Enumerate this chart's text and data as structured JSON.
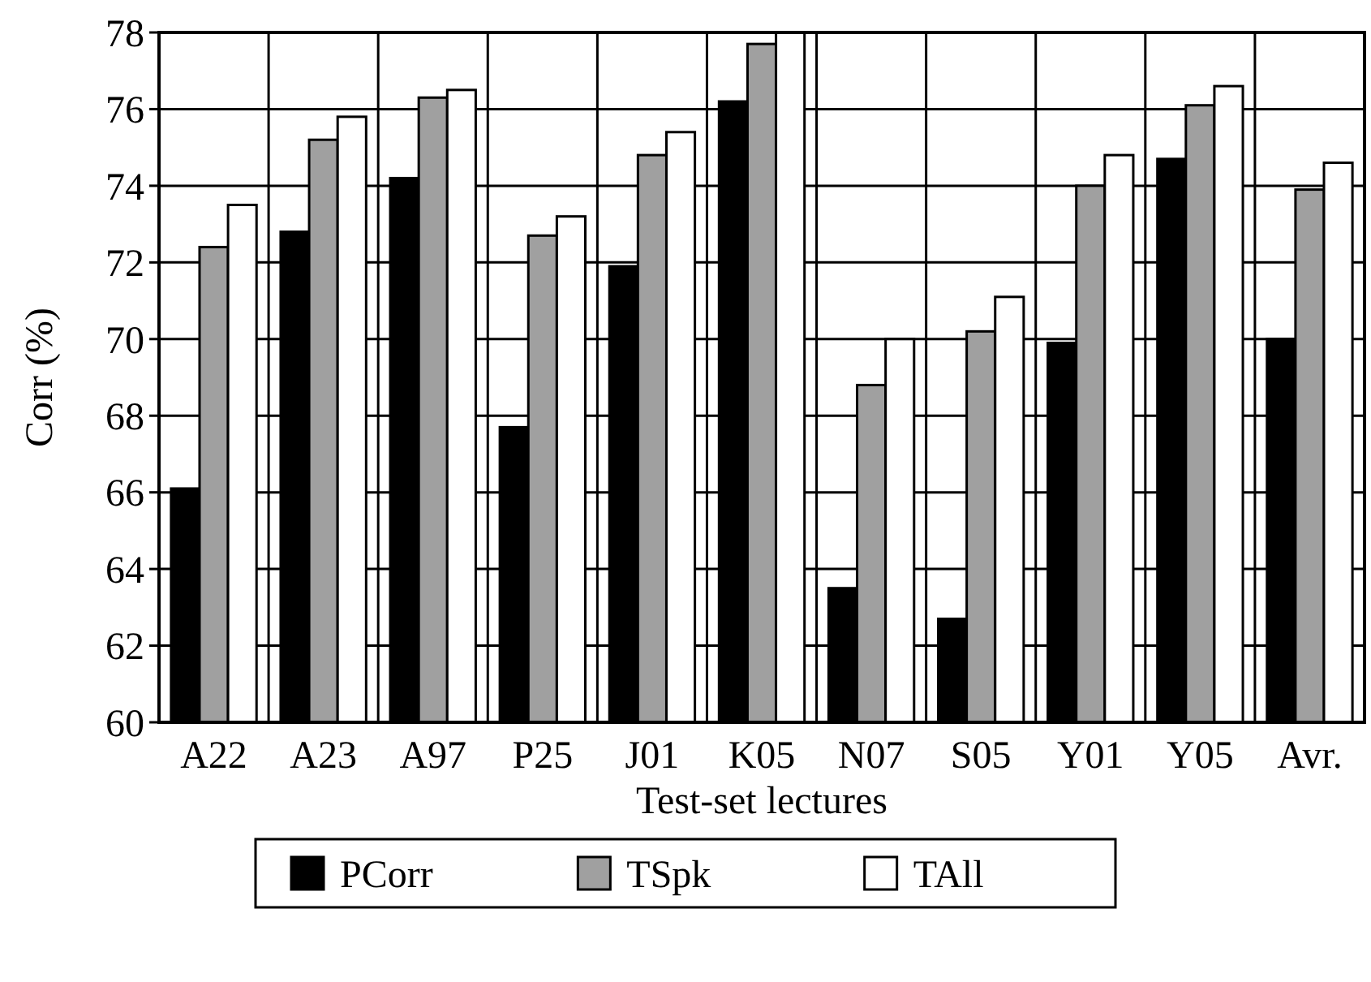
{
  "chart_data": {
    "type": "bar",
    "xlabel": "Test-set lectures",
    "ylabel": "Corr (%)",
    "categories": [
      "A22",
      "A23",
      "A97",
      "P25",
      "J01",
      "K05",
      "N07",
      "S05",
      "Y01",
      "Y05",
      "Avr."
    ],
    "series": [
      {
        "name": "PCorr",
        "color": "#000000",
        "values": [
          66.1,
          72.8,
          74.2,
          67.7,
          71.9,
          76.2,
          63.5,
          62.7,
          69.9,
          74.7,
          70.0
        ]
      },
      {
        "name": "TSpk",
        "color": "#a0a0a0",
        "values": [
          72.4,
          75.2,
          76.3,
          72.7,
          74.8,
          77.7,
          68.8,
          70.2,
          74.0,
          76.1,
          73.9
        ]
      },
      {
        "name": "TAll",
        "color": "#ffffff",
        "values": [
          73.5,
          75.8,
          76.5,
          73.2,
          75.4,
          78.0,
          70.0,
          71.1,
          74.8,
          76.6,
          74.6
        ]
      }
    ],
    "ylim": [
      60,
      78
    ],
    "yticks": [
      60,
      62,
      64,
      66,
      68,
      70,
      72,
      74,
      76,
      78
    ],
    "grid": true,
    "legend": "bottom"
  }
}
